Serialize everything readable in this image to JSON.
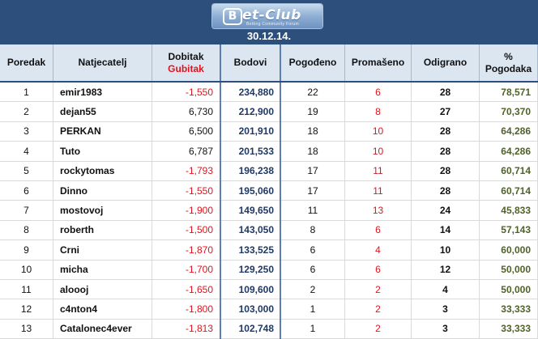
{
  "header": {
    "logo_b": "B",
    "logo_text": "et-Club",
    "logo_sub": "Betting Community Forum",
    "date": "30.12.14."
  },
  "columns": {
    "rank": "Poredak",
    "player": "Natjecatelj",
    "win_label": "Dobitak",
    "loss_label": "Gubitak",
    "points": "Bodovi",
    "hits": "Pogođeno",
    "misses": "Promašeno",
    "played": "Odigrano",
    "pct_symbol": "%",
    "pct_label": "Pogodaka"
  },
  "colors": {
    "header_bg": "#2d4f7c",
    "column_header_bg": "#dce6f1",
    "negative": "#e0141e",
    "points": "#1f3864",
    "percentage": "#4f6228"
  },
  "rows": [
    {
      "rank": "1",
      "player": "emir1983",
      "profit": "-1,550",
      "negative": true,
      "points": "234,880",
      "hits": "22",
      "misses": "6",
      "played": "28",
      "pct": "78,571"
    },
    {
      "rank": "2",
      "player": "dejan55",
      "profit": "6,730",
      "negative": false,
      "points": "212,900",
      "hits": "19",
      "misses": "8",
      "played": "27",
      "pct": "70,370"
    },
    {
      "rank": "3",
      "player": "PERKAN",
      "profit": "6,500",
      "negative": false,
      "points": "201,910",
      "hits": "18",
      "misses": "10",
      "played": "28",
      "pct": "64,286"
    },
    {
      "rank": "4",
      "player": "Tuto",
      "profit": "6,787",
      "negative": false,
      "points": "201,533",
      "hits": "18",
      "misses": "10",
      "played": "28",
      "pct": "64,286"
    },
    {
      "rank": "5",
      "player": "rockytomas",
      "profit": "-1,793",
      "negative": true,
      "points": "196,238",
      "hits": "17",
      "misses": "11",
      "played": "28",
      "pct": "60,714"
    },
    {
      "rank": "6",
      "player": "Dinno",
      "profit": "-1,550",
      "negative": true,
      "points": "195,060",
      "hits": "17",
      "misses": "11",
      "played": "28",
      "pct": "60,714"
    },
    {
      "rank": "7",
      "player": "mostovoj",
      "profit": "-1,900",
      "negative": true,
      "points": "149,650",
      "hits": "11",
      "misses": "13",
      "played": "24",
      "pct": "45,833"
    },
    {
      "rank": "8",
      "player": "roberth",
      "profit": "-1,500",
      "negative": true,
      "points": "143,050",
      "hits": "8",
      "misses": "6",
      "played": "14",
      "pct": "57,143"
    },
    {
      "rank": "9",
      "player": "Crni",
      "profit": "-1,870",
      "negative": true,
      "points": "133,525",
      "hits": "6",
      "misses": "4",
      "played": "10",
      "pct": "60,000"
    },
    {
      "rank": "10",
      "player": "micha",
      "profit": "-1,700",
      "negative": true,
      "points": "129,250",
      "hits": "6",
      "misses": "6",
      "played": "12",
      "pct": "50,000"
    },
    {
      "rank": "11",
      "player": "aloooj",
      "profit": "-1,650",
      "negative": true,
      "points": "109,600",
      "hits": "2",
      "misses": "2",
      "played": "4",
      "pct": "50,000"
    },
    {
      "rank": "12",
      "player": "c4nton4",
      "profit": "-1,800",
      "negative": true,
      "points": "103,000",
      "hits": "1",
      "misses": "2",
      "played": "3",
      "pct": "33,333"
    },
    {
      "rank": "13",
      "player": "Catalonec4ever",
      "profit": "-1,813",
      "negative": true,
      "points": "102,748",
      "hits": "1",
      "misses": "2",
      "played": "3",
      "pct": "33,333"
    }
  ]
}
